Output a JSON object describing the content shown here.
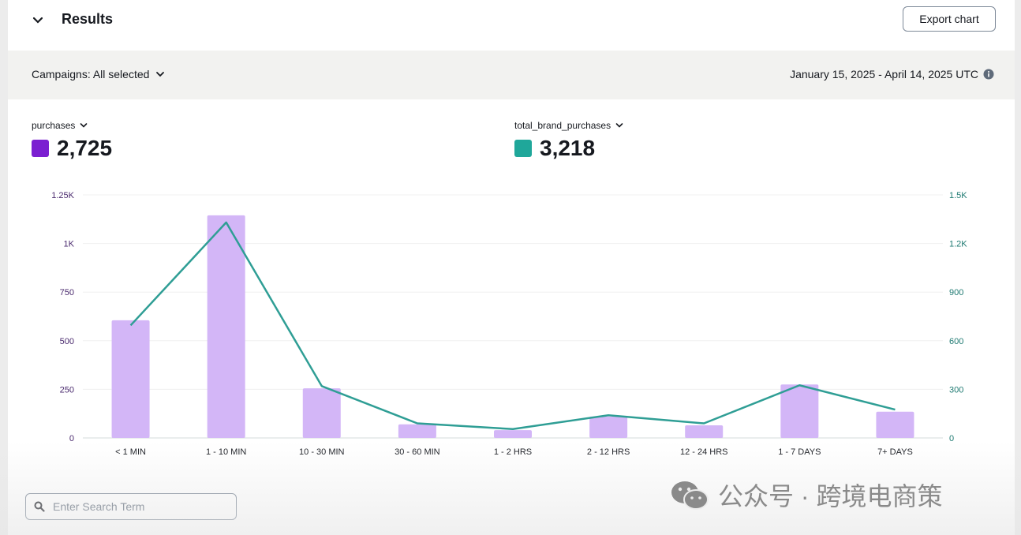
{
  "header": {
    "title": "Results",
    "export_label": "Export chart"
  },
  "filters": {
    "campaigns_label": "Campaigns: All selected",
    "date_range": "January 15, 2025 - April 14, 2025 UTC"
  },
  "metrics": [
    {
      "label": "purchases",
      "value": "2,725",
      "color": "#7b1fd1"
    },
    {
      "label": "total_brand_purchases",
      "value": "3,218",
      "color": "#1fa79a"
    }
  ],
  "chart_data": {
    "type": "bar",
    "categories": [
      "< 1 MIN",
      "1 - 10 MIN",
      "10 - 30 MIN",
      "30 - 60 MIN",
      "1 - 2 HRS",
      "2 - 12 HRS",
      "12 - 24 HRS",
      "1 - 7 DAYS",
      "7+ DAYS"
    ],
    "series": [
      {
        "name": "purchases",
        "type": "bar",
        "axis": "left",
        "color": "#d3b6f7",
        "values": [
          605,
          1145,
          255,
          70,
          40,
          110,
          65,
          275,
          135
        ]
      },
      {
        "name": "total_brand_purchases",
        "type": "line",
        "axis": "right",
        "color": "#2f9e95",
        "values": [
          695,
          1330,
          320,
          90,
          55,
          140,
          90,
          325,
          175
        ]
      }
    ],
    "y_left": {
      "range": [
        0,
        1250
      ],
      "ticks": [
        0,
        250,
        500,
        750,
        1000,
        1250
      ],
      "tick_labels": [
        "0",
        "250",
        "500",
        "750",
        "1K",
        "1.25K"
      ]
    },
    "y_right": {
      "range": [
        0,
        1500
      ],
      "ticks": [
        0,
        300,
        600,
        900,
        1200,
        1500
      ],
      "tick_labels": [
        "0",
        "300",
        "600",
        "900",
        "1.2K",
        "1.5K"
      ]
    },
    "grid": true
  },
  "search": {
    "placeholder": "Enter Search Term"
  },
  "watermark": {
    "text": "公众号 · 跨境电商策"
  }
}
